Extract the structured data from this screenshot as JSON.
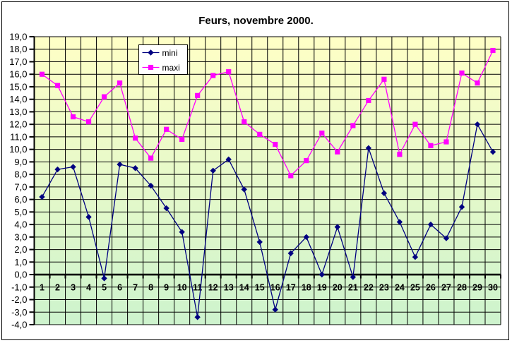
{
  "window": {
    "background": "#FFFFFF",
    "border_color": "#000000"
  },
  "chart_data": {
    "type": "line",
    "title": "Feurs, novembre 2000.",
    "xlabel": "",
    "ylabel": "",
    "x": [
      1,
      2,
      3,
      4,
      5,
      6,
      7,
      8,
      9,
      10,
      11,
      12,
      13,
      14,
      15,
      16,
      17,
      18,
      19,
      20,
      21,
      22,
      23,
      24,
      25,
      26,
      27,
      28,
      29,
      30
    ],
    "xticks": [
      "1",
      "2",
      "3",
      "4",
      "5",
      "6",
      "7",
      "8",
      "9",
      "10",
      "11",
      "12",
      "13",
      "14",
      "15",
      "16",
      "17",
      "18",
      "19",
      "20",
      "21",
      "22",
      "23",
      "24",
      "25",
      "26",
      "27",
      "28",
      "29",
      "30"
    ],
    "yticks": [
      "19,0",
      "18,0",
      "17,0",
      "16,0",
      "15,0",
      "14,0",
      "13,0",
      "12,0",
      "11,0",
      "10,0",
      "9,0",
      "8,0",
      "7,0",
      "6,0",
      "5,0",
      "4,0",
      "3,0",
      "2,0",
      "1,0",
      "0,0",
      "-1,0",
      "-2,0",
      "-3,0",
      "-4,0"
    ],
    "ylim": [
      -4,
      19
    ],
    "ytick_step": 1.0,
    "decimal_separator": ",",
    "grid": true,
    "legend_position": "top-left-inset",
    "plot_bg_gradient_top": "#FFFFC6",
    "plot_bg_gradient_bottom": "#CDF3CD",
    "grid_color": "#000000",
    "series": [
      {
        "name": "mini",
        "color": "#000080",
        "marker": "diamond",
        "values": [
          6.2,
          8.4,
          8.6,
          4.6,
          -0.3,
          8.8,
          8.5,
          7.1,
          5.3,
          3.4,
          -3.4,
          8.3,
          9.2,
          6.8,
          2.6,
          -2.8,
          1.7,
          3.0,
          0.0,
          3.8,
          -0.2,
          10.1,
          6.5,
          4.2,
          1.4,
          4.0,
          2.9,
          5.4,
          12.0,
          9.8
        ]
      },
      {
        "name": "maxi",
        "color": "#FF00FF",
        "marker": "square",
        "values": [
          16.0,
          15.1,
          12.6,
          12.2,
          14.2,
          15.3,
          10.9,
          9.3,
          11.6,
          10.8,
          14.3,
          15.9,
          16.2,
          12.2,
          11.2,
          10.4,
          7.9,
          9.1,
          11.3,
          9.8,
          11.9,
          13.9,
          15.6,
          9.6,
          12.0,
          10.3,
          10.6,
          16.1,
          15.3,
          17.9
        ]
      }
    ]
  },
  "legend": {
    "items": [
      {
        "label": "mini"
      },
      {
        "label": "maxi"
      }
    ]
  }
}
